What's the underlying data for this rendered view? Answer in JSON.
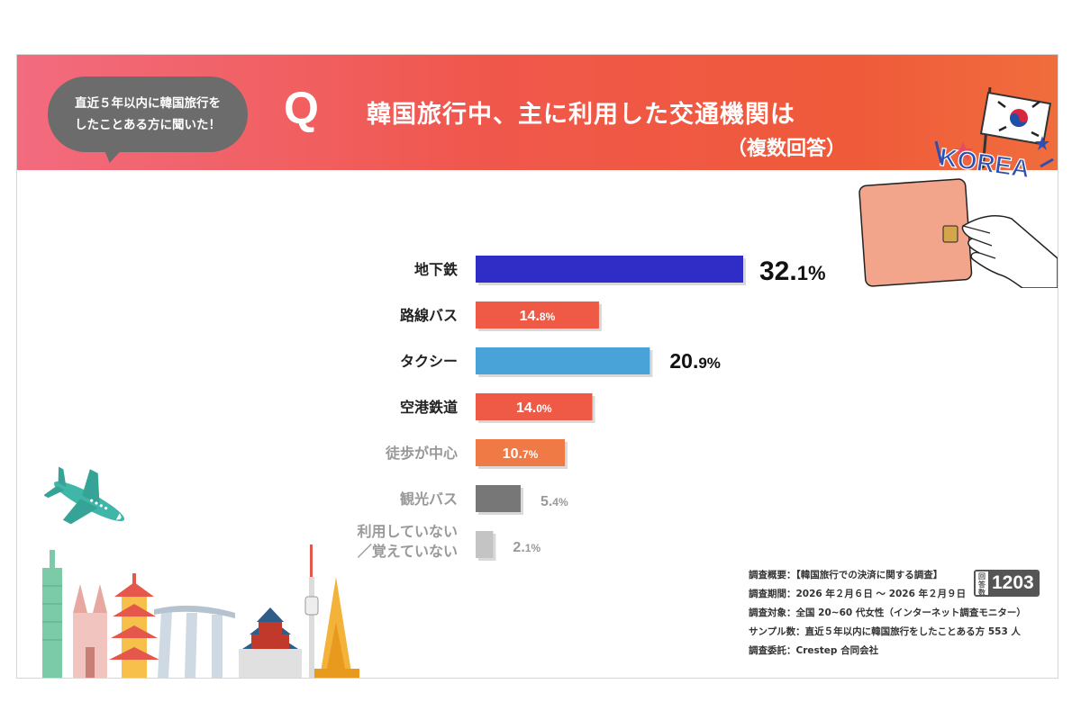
{
  "header": {
    "bubble_line1": "直近５年以内に韓国旅行を",
    "bubble_line2": "したことある方に聞いた！",
    "q_mark": "Q",
    "title": "韓国旅行中、主に利用した交通機関は",
    "subtitle": "（複数回答）",
    "korea_text": "KOREA"
  },
  "chart_data": {
    "type": "bar",
    "orientation": "horizontal",
    "categories": [
      "地下鉄",
      "路線バス",
      "タクシー",
      "空港鉄道",
      "徒歩が中心",
      "観光バス",
      "利用していない\n／覚えていない"
    ],
    "values": [
      32.1,
      14.8,
      20.9,
      14.0,
      10.7,
      5.4,
      2.1
    ],
    "labels": [
      [
        "32.",
        "1%"
      ],
      [
        "14.",
        "8%"
      ],
      [
        "20.",
        "9%"
      ],
      [
        "14.",
        "0%"
      ],
      [
        "10.",
        "7%"
      ],
      [
        "5.",
        "4%"
      ],
      [
        "2.",
        "1%"
      ]
    ],
    "colors": [
      "#2f2dc6",
      "#ee5a45",
      "#4aa3d8",
      "#ee5a45",
      "#f07a45",
      "#777777",
      "#c4c4c4"
    ],
    "category_text_colors": [
      "#222222",
      "#222222",
      "#222222",
      "#222222",
      "#999999",
      "#999999",
      "#999999"
    ],
    "value_text_colors": [
      "#111111",
      "#ffffff",
      "#111111",
      "#ffffff",
      "#ffffff",
      "#999999",
      "#999999"
    ]
  },
  "notes": {
    "line1": "調査概要：【韓国旅行での決済に関する調査】",
    "line2": "調査期間：2026 年２月６日 ～ 2026 年２月９日",
    "line3": "調査対象：全国 20~60 代女性（インターネット調査モニター）",
    "line4": "サンプル数：直近５年以内に韓国旅行をしたことある方 553 人",
    "line5": "調査委託：Crestep 合同会社"
  },
  "badge": {
    "label": "回答数",
    "count": "1203"
  },
  "theme": {
    "header_start": "#f26b7f",
    "header_end": "#f06d3c",
    "bubble": "#6c6c6c"
  }
}
